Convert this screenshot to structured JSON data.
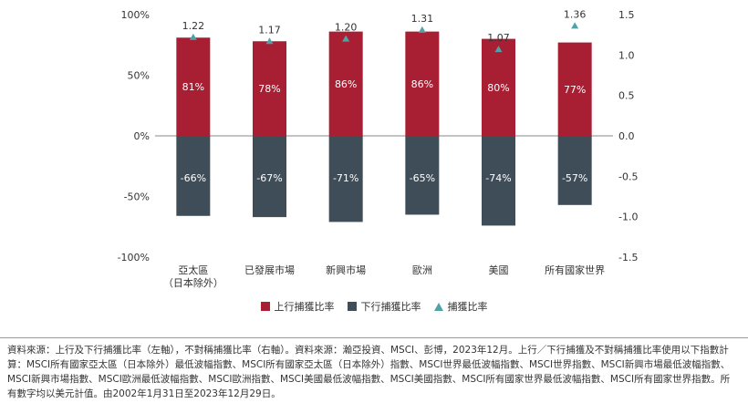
{
  "chart_data": {
    "type": "bar",
    "categories": [
      [
        "亞太區",
        "（日本除外）"
      ],
      [
        "已發展市場"
      ],
      [
        "新興市場"
      ],
      [
        "歐洲"
      ],
      [
        "美國"
      ],
      [
        "所有國家世界"
      ]
    ],
    "series": [
      {
        "name": "上行捕獲比率",
        "axis": "left",
        "values": [
          81,
          78,
          86,
          86,
          80,
          77
        ],
        "labels": [
          "81%",
          "78%",
          "86%",
          "86%",
          "80%",
          "77%"
        ],
        "color": "#a81e33"
      },
      {
        "name": "下行捕獲比率",
        "axis": "left",
        "values": [
          -66,
          -67,
          -71,
          -65,
          -74,
          -57
        ],
        "labels": [
          "-66%",
          "-67%",
          "-71%",
          "-65%",
          "-74%",
          "-57%"
        ],
        "color": "#3f4d58"
      },
      {
        "name": "捕獲比率",
        "axis": "right",
        "type": "scatter",
        "marker": "triangle",
        "values": [
          1.22,
          1.17,
          1.2,
          1.31,
          1.07,
          1.36
        ],
        "labels": [
          "1.22",
          "1.17",
          "1.20",
          "1.31",
          "1.07",
          "1.36"
        ],
        "color": "#4fa3a6"
      }
    ],
    "ylim": [
      -100,
      100
    ],
    "y2lim": [
      -1.5,
      1.5
    ],
    "left_ticks": [
      100,
      50,
      0,
      -50,
      -100
    ],
    "left_tick_labels": [
      "100%",
      "50%",
      "0%",
      "-50%",
      "-100%"
    ],
    "right_ticks": [
      1.5,
      1.0,
      0.5,
      0.0,
      -0.5,
      -1.0,
      -1.5
    ],
    "right_tick_labels": [
      "1.5",
      "1.0",
      "0.5",
      "0.0",
      "-0.5",
      "-1.0",
      "-1.5"
    ],
    "legend_position": "bottom-center",
    "grid": false
  },
  "legend": {
    "upside": "上行捕獲比率",
    "downside": "下行捕獲比率",
    "capture": "捕獲比率"
  },
  "source_text": "資料來源：上行及下行捕獲比率（左軸），不對稱捕獲比率（右軸）。資料來源：瀚亞投資、MSCI、彭博，2023年12月。上行／下行捕獲及不對稱捕獲比率使用以下指數計算：MSCI所有國家亞太區（日本除外）最低波幅指數、MSCI所有國家亞太區（日本除外）指數、MSCI世界最低波幅指數、MSCI世界指數、MSCI新興市場最低波幅指數、MSCI新興市場指數、MSCI歐洲最低波幅指數、MSCI歐洲指數、MSCI美國最低波幅指數、MSCI美國指數、MSCI所有國家世界最低波幅指數、MSCI所有國家世界指數。所有數字均以美元計值。由2002年1月31日至2023年12月29日。"
}
